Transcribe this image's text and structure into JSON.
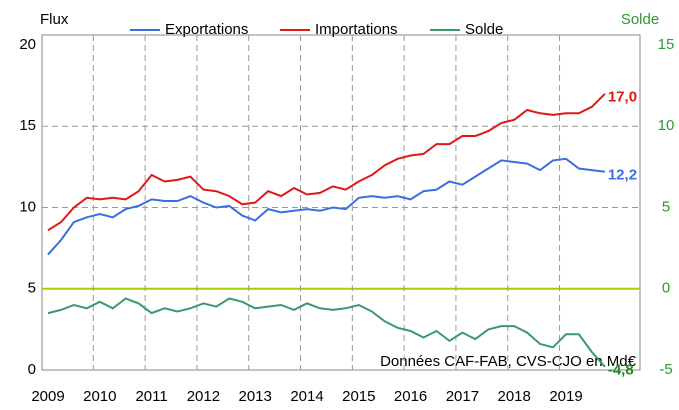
{
  "chart_data": {
    "type": "line",
    "legend": "top",
    "y_axis_label": "Flux",
    "y2_axis_label": "Solde",
    "annotation": "Données CAF-FAB, CVS-CJO en Md€",
    "categories": [
      "2009",
      null,
      null,
      null,
      "2010",
      null,
      null,
      null,
      "2011",
      null,
      null,
      null,
      "2012",
      null,
      null,
      null,
      "2013",
      null,
      null,
      null,
      "2014",
      null,
      null,
      null,
      "2015",
      null,
      null,
      null,
      "2016",
      null,
      null,
      null,
      "2017",
      null,
      null,
      null,
      "2018",
      null,
      null,
      null,
      "2019",
      null,
      null,
      null
    ],
    "ylim": [
      0,
      20
    ],
    "yticks": [
      0,
      5,
      10,
      15,
      20
    ],
    "y2lim": [
      -5,
      15
    ],
    "y2ticks": [
      -5,
      0,
      5,
      10,
      15
    ],
    "grid": true,
    "y2_color": "#2e9a2e",
    "y2_zero_line_color": "#a8d000",
    "series": [
      {
        "name": "Exportations",
        "color": "#3a6fe0",
        "values": [
          7.1,
          8.0,
          9.1,
          9.4,
          9.6,
          9.4,
          9.9,
          10.1,
          10.5,
          10.4,
          10.4,
          10.7,
          10.3,
          10.0,
          10.1,
          9.5,
          9.2,
          9.9,
          9.7,
          9.8,
          9.9,
          9.8,
          10.0,
          9.9,
          10.6,
          10.7,
          10.6,
          10.7,
          10.5,
          11.0,
          11.1,
          11.6,
          11.4,
          11.9,
          12.4,
          12.9,
          12.8,
          12.7,
          12.3,
          12.9,
          13.0,
          12.4,
          12.3,
          12.2
        ],
        "value_labels": [
          null,
          null,
          null,
          null,
          null,
          null,
          null,
          null,
          null,
          null,
          null,
          null,
          null,
          null,
          null,
          null,
          null,
          null,
          null,
          null,
          null,
          null,
          null,
          null,
          null,
          null,
          null,
          null,
          null,
          null,
          null,
          null,
          null,
          null,
          null,
          null,
          null,
          null,
          null,
          null,
          null,
          null,
          null,
          "12,2"
        ]
      },
      {
        "name": "Importations",
        "color": "#e01818",
        "values": [
          8.6,
          9.1,
          10.0,
          10.6,
          10.5,
          10.6,
          10.5,
          11.0,
          12.0,
          11.6,
          11.7,
          11.9,
          11.1,
          11.0,
          10.7,
          10.2,
          10.3,
          11.0,
          10.7,
          11.2,
          10.8,
          10.9,
          11.3,
          11.1,
          11.6,
          12.0,
          12.6,
          13.0,
          13.2,
          13.3,
          13.9,
          13.9,
          14.4,
          14.4,
          14.7,
          15.2,
          15.4,
          16.0,
          15.8,
          15.7,
          15.8,
          15.8,
          16.2,
          17.0
        ],
        "value_labels": [
          null,
          null,
          null,
          null,
          null,
          null,
          null,
          null,
          null,
          null,
          null,
          null,
          null,
          null,
          null,
          null,
          null,
          null,
          null,
          null,
          null,
          null,
          null,
          null,
          null,
          null,
          null,
          null,
          null,
          null,
          null,
          null,
          null,
          null,
          null,
          null,
          null,
          null,
          null,
          null,
          null,
          null,
          null,
          "17,0"
        ]
      },
      {
        "name": "Solde",
        "color": "#3a9a6a",
        "axis": "y2",
        "values": [
          -1.5,
          -1.3,
          -1.0,
          -1.2,
          -0.8,
          -1.2,
          -0.6,
          -0.9,
          -1.5,
          -1.2,
          -1.4,
          -1.2,
          -0.9,
          -1.1,
          -0.6,
          -0.8,
          -1.2,
          -1.1,
          -1.0,
          -1.3,
          -0.9,
          -1.2,
          -1.3,
          -1.2,
          -1.0,
          -1.4,
          -2.0,
          -2.4,
          -2.6,
          -3.0,
          -2.6,
          -3.2,
          -2.7,
          -3.1,
          -2.5,
          -2.3,
          -2.3,
          -2.7,
          -3.4,
          -3.6,
          -2.8,
          -2.8,
          -3.9,
          -4.8
        ],
        "value_labels": [
          null,
          null,
          null,
          null,
          null,
          null,
          null,
          null,
          null,
          null,
          null,
          null,
          null,
          null,
          null,
          null,
          null,
          null,
          null,
          null,
          null,
          null,
          null,
          null,
          null,
          null,
          null,
          null,
          null,
          null,
          null,
          null,
          null,
          null,
          null,
          null,
          null,
          null,
          null,
          null,
          null,
          null,
          null,
          "-4,8"
        ]
      }
    ]
  }
}
